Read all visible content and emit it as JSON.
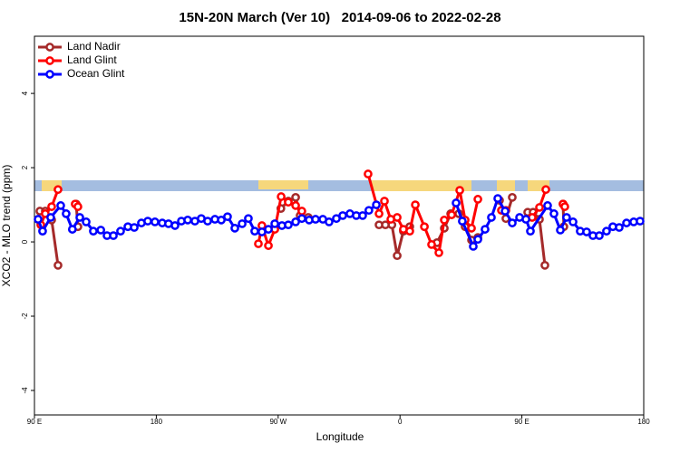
{
  "chart_data": {
    "type": "line",
    "title": "15N-20N March (Ver 10)   2014-09-06 to 2022-02-28",
    "x_label": "Longitude",
    "y_label": "XCO2 - MLO trend (ppm)",
    "xlim": [
      90,
      540
    ],
    "ylim": [
      -4.66,
      5.54
    ],
    "xticks": [
      {
        "value": 90,
        "label": "90 E"
      },
      180,
      {
        "value": 270,
        "label": "90 W"
      },
      {
        "value": 360,
        "label": "0"
      },
      {
        "value": 450,
        "label": "90 E"
      },
      {
        "value": 540,
        "label": "180"
      }
    ],
    "yticks": [
      -4,
      -2,
      0,
      2,
      4
    ],
    "legend_position": "top-left",
    "series": [
      {
        "name": "Land Nadir",
        "color": "#a52a2a",
        "x": [
          94,
          98,
          102.7,
          107.4,
          null,
          120.8,
          122.1,
          null,
          272,
          277.5,
          282.9,
          286.2,
          292.2,
          null,
          344.5,
          349.2,
          354,
          357.9,
          362.5,
          367.2,
          null,
          387.3,
          392.7,
          397.4,
          403.4,
          408.1,
          412.8,
          417.5,
          null,
          433.5,
          438.2,
          442.9,
          null,
          454.3,
          458.3,
          463,
          467,
          null,
          480.4,
          481
        ],
        "values": [
          0.83,
          0.83,
          0.59,
          -0.63,
          null,
          1.02,
          0.41,
          null,
          0.9,
          1.1,
          1.2,
          0.71,
          0.66,
          null,
          0.46,
          0.46,
          0.46,
          -0.37,
          0.29,
          0.41,
          null,
          -0.02,
          0.37,
          0.76,
          0.76,
          0.41,
          0.05,
          0.12,
          null,
          1.12,
          0.63,
          1.2,
          null,
          0.8,
          0.8,
          0.61,
          -0.63,
          null,
          1.02,
          0.41
        ]
      },
      {
        "name": "Land Glint",
        "color": "#ff0000",
        "x": [
          94.7,
          98,
          102.7,
          107.4,
          null,
          120.1,
          122.1,
          null,
          255.4,
          258,
          262.8,
          267.5,
          272.2,
          277.5,
          282.9,
          287.5,
          null,
          336.4,
          344.5,
          348.5,
          353.2,
          357.9,
          362.5,
          367.2,
          371.3,
          378,
          383.3,
          388.7,
          392.7,
          398.1,
          404.1,
          408.1,
          412.8,
          417.5,
          null,
          434.9,
          438.2,
          null,
          457.6,
          463,
          467.7,
          null,
          480.4,
          481.7
        ],
        "values": [
          0.46,
          0.76,
          0.95,
          1.41,
          null,
          1.02,
          0.95,
          null,
          -0.05,
          0.44,
          -0.1,
          0.34,
          1.22,
          1.07,
          0.98,
          0.83,
          null,
          1.83,
          0.76,
          1.1,
          0.61,
          0.66,
          0.34,
          0.29,
          1.0,
          0.41,
          -0.07,
          -0.29,
          0.59,
          0.73,
          1.39,
          0.59,
          0.37,
          1.15,
          null,
          0.85,
          0.85,
          null,
          0.66,
          0.93,
          1.41,
          null,
          1.02,
          0.95
        ]
      },
      {
        "name": "Ocean Glint",
        "color": "#0000ff",
        "x": [
          92.7,
          96,
          102,
          109.4,
          113.4,
          118,
          123.5,
          128.2,
          133.5,
          139,
          143.6,
          148.3,
          153.6,
          159,
          163.7,
          169,
          173.7,
          179,
          184.4,
          189,
          193.8,
          198.5,
          203.2,
          208.5,
          213.2,
          217.9,
          223.3,
          228,
          232.6,
          238,
          243.4,
          248,
          252.7,
          258,
          262.8,
          267.5,
          272.8,
          277.5,
          282.9,
          287.5,
          292.9,
          297.6,
          303,
          307.6,
          313,
          317.7,
          323,
          327.7,
          332.4,
          337,
          342.5,
          null,
          401.4,
          406,
          414.1,
          417.5,
          422.8,
          427.5,
          432.2,
          437.6,
          442.9,
          448.3,
          453,
          456.3,
          469,
          473.7,
          478.4,
          483,
          487.8,
          493.1,
          497.8,
          502.5,
          507.2,
          512.5,
          517.2,
          521.9,
          527.3,
          532.6,
          537.3
        ],
        "values": [
          0.61,
          0.29,
          0.66,
          0.98,
          0.76,
          0.34,
          0.66,
          0.54,
          0.29,
          0.32,
          0.17,
          0.17,
          0.29,
          0.41,
          0.39,
          0.51,
          0.56,
          0.54,
          0.51,
          0.49,
          0.44,
          0.56,
          0.59,
          0.56,
          0.63,
          0.56,
          0.61,
          0.59,
          0.68,
          0.37,
          0.49,
          0.63,
          0.29,
          0.27,
          0.34,
          0.49,
          0.44,
          0.46,
          0.54,
          0.63,
          0.59,
          0.61,
          0.61,
          0.54,
          0.63,
          0.71,
          0.76,
          0.71,
          0.71,
          0.85,
          1.0,
          null,
          1.05,
          0.56,
          -0.12,
          0.07,
          0.34,
          0.66,
          1.17,
          0.83,
          0.51,
          0.66,
          0.61,
          0.29,
          0.98,
          0.76,
          0.32,
          0.66,
          0.54,
          0.29,
          0.27,
          0.17,
          0.17,
          0.29,
          0.41,
          0.39,
          0.51,
          0.54,
          0.56
        ]
      }
    ]
  }
}
